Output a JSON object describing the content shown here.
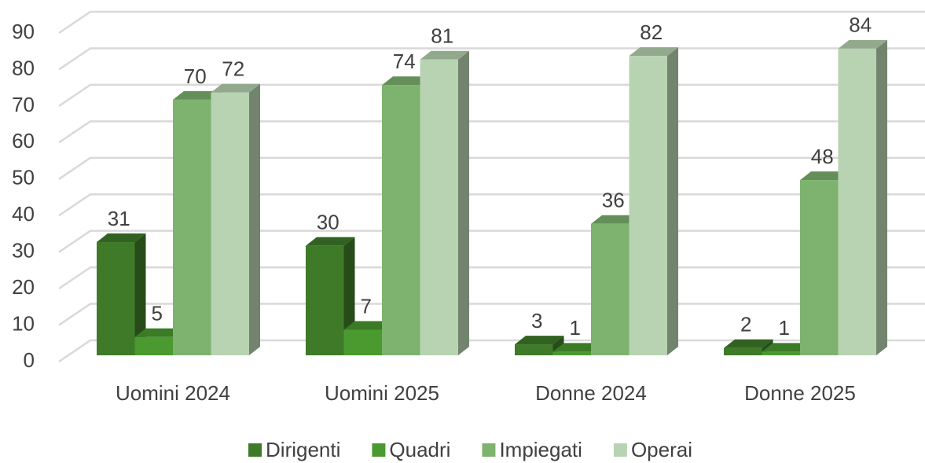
{
  "chart_data": {
    "type": "bar3d",
    "categories": [
      "Uomini 2024",
      "Uomini 2025",
      "Donne 2024",
      "Donne 2025"
    ],
    "series": [
      {
        "name": "Dirigenti",
        "color": "#3f7a29",
        "values": [
          31,
          30,
          3,
          2
        ]
      },
      {
        "name": "Quadri",
        "color": "#4a9a30",
        "values": [
          5,
          7,
          1,
          1
        ]
      },
      {
        "name": "Impiegati",
        "color": "#7db36e",
        "values": [
          70,
          74,
          36,
          48
        ]
      },
      {
        "name": "Operai",
        "color": "#b8d3b2",
        "values": [
          72,
          81,
          82,
          84
        ]
      }
    ],
    "ylim": [
      0,
      90
    ],
    "yticks": [
      0,
      10,
      20,
      30,
      40,
      50,
      60,
      70,
      80,
      90
    ],
    "grid": true,
    "legend": "bottom"
  }
}
